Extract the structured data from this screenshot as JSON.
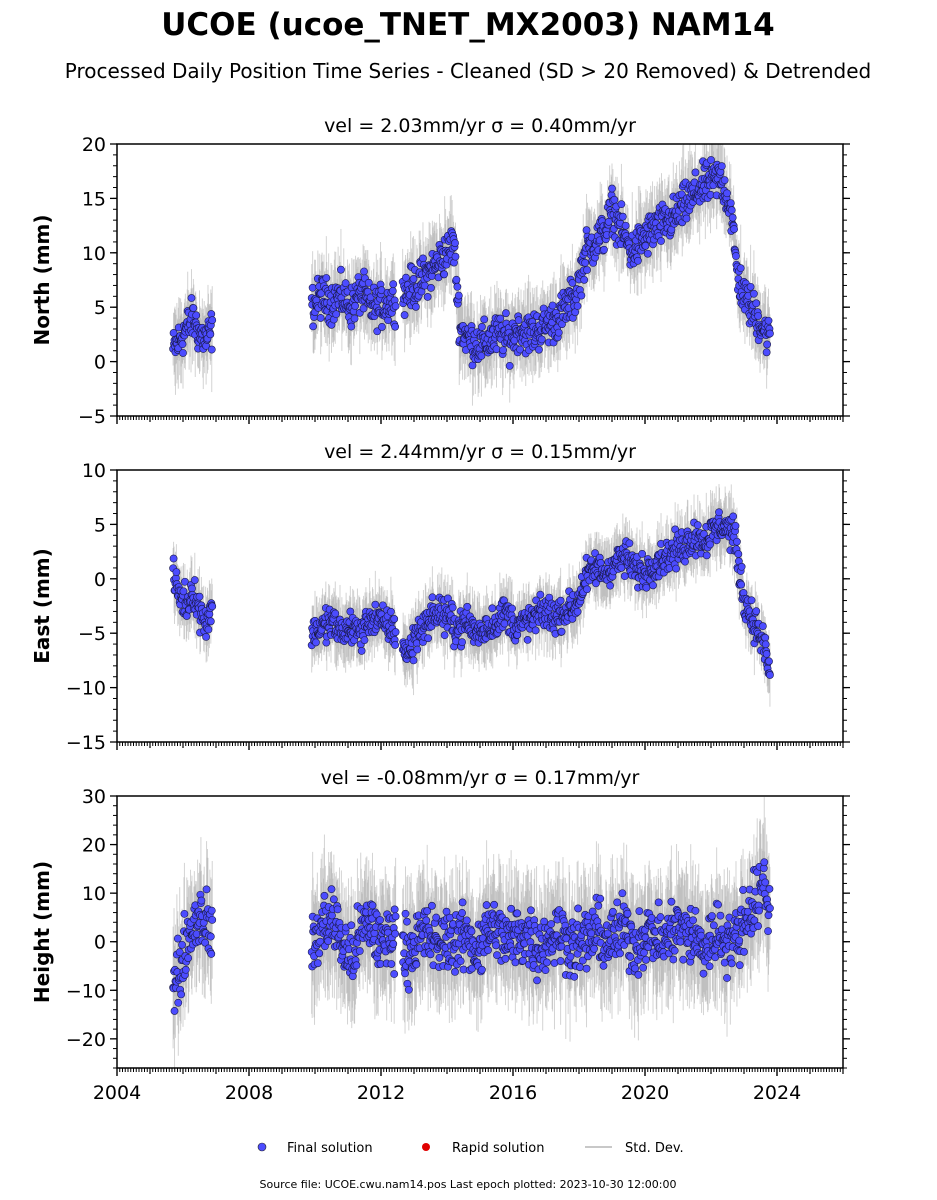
{
  "title": "UCOE (ucoe_TNET_MX2003) NAM14",
  "subtitle": "Processed Daily Position Time Series - Cleaned (SD > 20 Removed) & Detrended",
  "footer": "Source file: UCOE.cwu.nam14.pos  Last epoch plotted: 2023-10-30 12:00:00",
  "legend": {
    "final": "Final solution",
    "rapid": "Rapid solution",
    "std": "Std. Dev."
  },
  "colors": {
    "final": "#4c4cff",
    "rapid": "#e00000",
    "std": "#b0b0b0"
  },
  "chart_data": [
    {
      "type": "scatter",
      "panel": "north",
      "title": "vel = 2.03mm/yr   σ = 0.40mm/yr",
      "ylabel": "North (mm)",
      "xlim": [
        2004,
        2026
      ],
      "ylim": [
        -5,
        20
      ],
      "yticks": [
        -5,
        0,
        5,
        10,
        15,
        20
      ],
      "ytick_labels": [
        "−5",
        "0",
        "5",
        "10",
        "15",
        "20"
      ],
      "series": [
        {
          "name": "Final solution",
          "x": [
            2005.7,
            2005.9,
            2006.1,
            2006.3,
            2006.5,
            2006.7,
            2006.9,
            2009.9,
            2010.2,
            2010.5,
            2010.8,
            2011.1,
            2011.4,
            2011.7,
            2012.0,
            2012.3,
            2012.5,
            2012.8,
            2013.1,
            2013.4,
            2013.7,
            2014.0,
            2014.2,
            2014.4,
            2014.7,
            2015.0,
            2015.3,
            2015.6,
            2015.9,
            2016.2,
            2016.5,
            2016.8,
            2017.1,
            2017.4,
            2017.6,
            2017.9,
            2018.2,
            2018.5,
            2018.8,
            2019.0,
            2019.3,
            2019.6,
            2019.9,
            2020.2,
            2020.5,
            2020.8,
            2021.1,
            2021.4,
            2021.7,
            2022.0,
            2022.3,
            2022.6,
            2022.8,
            2023.0,
            2023.3,
            2023.6,
            2023.8
          ],
          "y": [
            1.0,
            2.0,
            3.0,
            4.0,
            2.5,
            2.0,
            3.0,
            5.0,
            6.0,
            5.5,
            6.0,
            5.0,
            6.5,
            5.0,
            5.0,
            5.5,
            6.0,
            6.5,
            7.0,
            8.0,
            9.0,
            10.0,
            11.0,
            3.0,
            2.0,
            1.5,
            2.0,
            2.5,
            2.0,
            3.0,
            2.5,
            3.0,
            3.5,
            4.0,
            5.0,
            6.0,
            10.0,
            11.0,
            12.0,
            14.0,
            12.0,
            10.0,
            11.0,
            12.0,
            12.5,
            13.0,
            14.0,
            15.0,
            16.0,
            16.5,
            17.0,
            14.0,
            8.0,
            6.0,
            4.5,
            3.0,
            2.0
          ]
        },
        {
          "name": "Rapid solution",
          "x": [],
          "y": []
        }
      ]
    },
    {
      "type": "scatter",
      "panel": "east",
      "title": "vel = 2.44mm/yr   σ = 0.15mm/yr",
      "ylabel": "East (mm)",
      "xlim": [
        2004,
        2026
      ],
      "ylim": [
        -15,
        10
      ],
      "yticks": [
        -15,
        -10,
        -5,
        0,
        5,
        10
      ],
      "ytick_labels": [
        "−15",
        "−10",
        "−5",
        "0",
        "5",
        "10"
      ],
      "series": [
        {
          "name": "Final solution",
          "x": [
            2005.7,
            2005.9,
            2006.1,
            2006.3,
            2006.5,
            2006.7,
            2006.9,
            2009.9,
            2010.2,
            2010.5,
            2010.8,
            2011.1,
            2011.4,
            2011.7,
            2012.0,
            2012.3,
            2012.5,
            2012.8,
            2013.1,
            2013.4,
            2013.7,
            2014.0,
            2014.3,
            2014.6,
            2014.9,
            2015.2,
            2015.5,
            2015.8,
            2016.1,
            2016.4,
            2016.7,
            2017.0,
            2017.3,
            2017.6,
            2017.9,
            2018.2,
            2018.5,
            2018.8,
            2019.1,
            2019.4,
            2019.7,
            2020.0,
            2020.3,
            2020.6,
            2020.9,
            2021.2,
            2021.5,
            2021.8,
            2022.1,
            2022.4,
            2022.7,
            2023.0,
            2023.3,
            2023.6,
            2023.8
          ],
          "y": [
            0.0,
            -1.5,
            -2.5,
            -1.0,
            -3.0,
            -4.0,
            -2.5,
            -5.0,
            -4.5,
            -4.0,
            -5.0,
            -4.5,
            -5.0,
            -3.5,
            -4.0,
            -4.5,
            -5.0,
            -7.0,
            -5.0,
            -4.0,
            -3.0,
            -3.5,
            -4.5,
            -4.0,
            -5.0,
            -4.5,
            -4.0,
            -3.0,
            -4.5,
            -4.0,
            -3.5,
            -3.0,
            -3.5,
            -3.0,
            -2.5,
            0.0,
            1.0,
            0.5,
            1.5,
            2.0,
            1.0,
            0.5,
            1.5,
            2.0,
            2.5,
            3.0,
            4.0,
            3.5,
            4.5,
            5.0,
            4.0,
            -2.0,
            -4.0,
            -6.0,
            -9.0
          ]
        },
        {
          "name": "Rapid solution",
          "x": [],
          "y": []
        }
      ]
    },
    {
      "type": "scatter",
      "panel": "height",
      "title": "vel = -0.08mm/yr   σ = 0.17mm/yr",
      "ylabel": "Height (mm)",
      "xlim": [
        2004,
        2026
      ],
      "ylim": [
        -26,
        30
      ],
      "yticks": [
        -20,
        -10,
        0,
        10,
        20,
        30
      ],
      "ytick_labels": [
        "−20",
        "−10",
        "0",
        "10",
        "20",
        "30"
      ],
      "xticks": [
        2004,
        2008,
        2012,
        2016,
        2020,
        2024
      ],
      "xtick_labels": [
        "2004",
        "2008",
        "2012",
        "2016",
        "2020",
        "2024"
      ],
      "series": [
        {
          "name": "Final solution",
          "x": [
            2005.7,
            2005.9,
            2006.1,
            2006.3,
            2006.5,
            2006.7,
            2006.9,
            2009.9,
            2010.2,
            2010.5,
            2010.8,
            2011.1,
            2011.4,
            2011.7,
            2012.0,
            2012.3,
            2012.5,
            2012.8,
            2013.1,
            2013.4,
            2013.7,
            2014.0,
            2014.3,
            2014.6,
            2014.9,
            2015.2,
            2015.5,
            2015.8,
            2016.1,
            2016.4,
            2016.7,
            2017.0,
            2017.3,
            2017.6,
            2017.9,
            2018.2,
            2018.5,
            2018.8,
            2019.1,
            2019.4,
            2019.7,
            2020.0,
            2020.3,
            2020.6,
            2020.9,
            2021.2,
            2021.5,
            2021.8,
            2022.1,
            2022.4,
            2022.7,
            2023.0,
            2023.3,
            2023.6,
            2023.8
          ],
          "y": [
            -10.0,
            -6.0,
            0.0,
            3.0,
            6.0,
            4.0,
            2.0,
            -2.0,
            3.0,
            5.0,
            0.0,
            -4.0,
            2.0,
            4.0,
            -1.0,
            2.0,
            1.0,
            -2.0,
            0.0,
            2.0,
            -1.0,
            1.0,
            0.0,
            1.0,
            -2.0,
            2.0,
            3.0,
            0.0,
            1.0,
            2.0,
            -1.0,
            0.0,
            2.0,
            1.0,
            -1.0,
            0.0,
            2.0,
            0.0,
            1.0,
            3.0,
            -1.0,
            2.0,
            1.0,
            0.0,
            3.0,
            2.0,
            1.0,
            -2.0,
            2.0,
            1.0,
            0.0,
            4.0,
            8.0,
            12.0,
            6.0
          ]
        },
        {
          "name": "Rapid solution",
          "x": [],
          "y": []
        }
      ]
    }
  ]
}
